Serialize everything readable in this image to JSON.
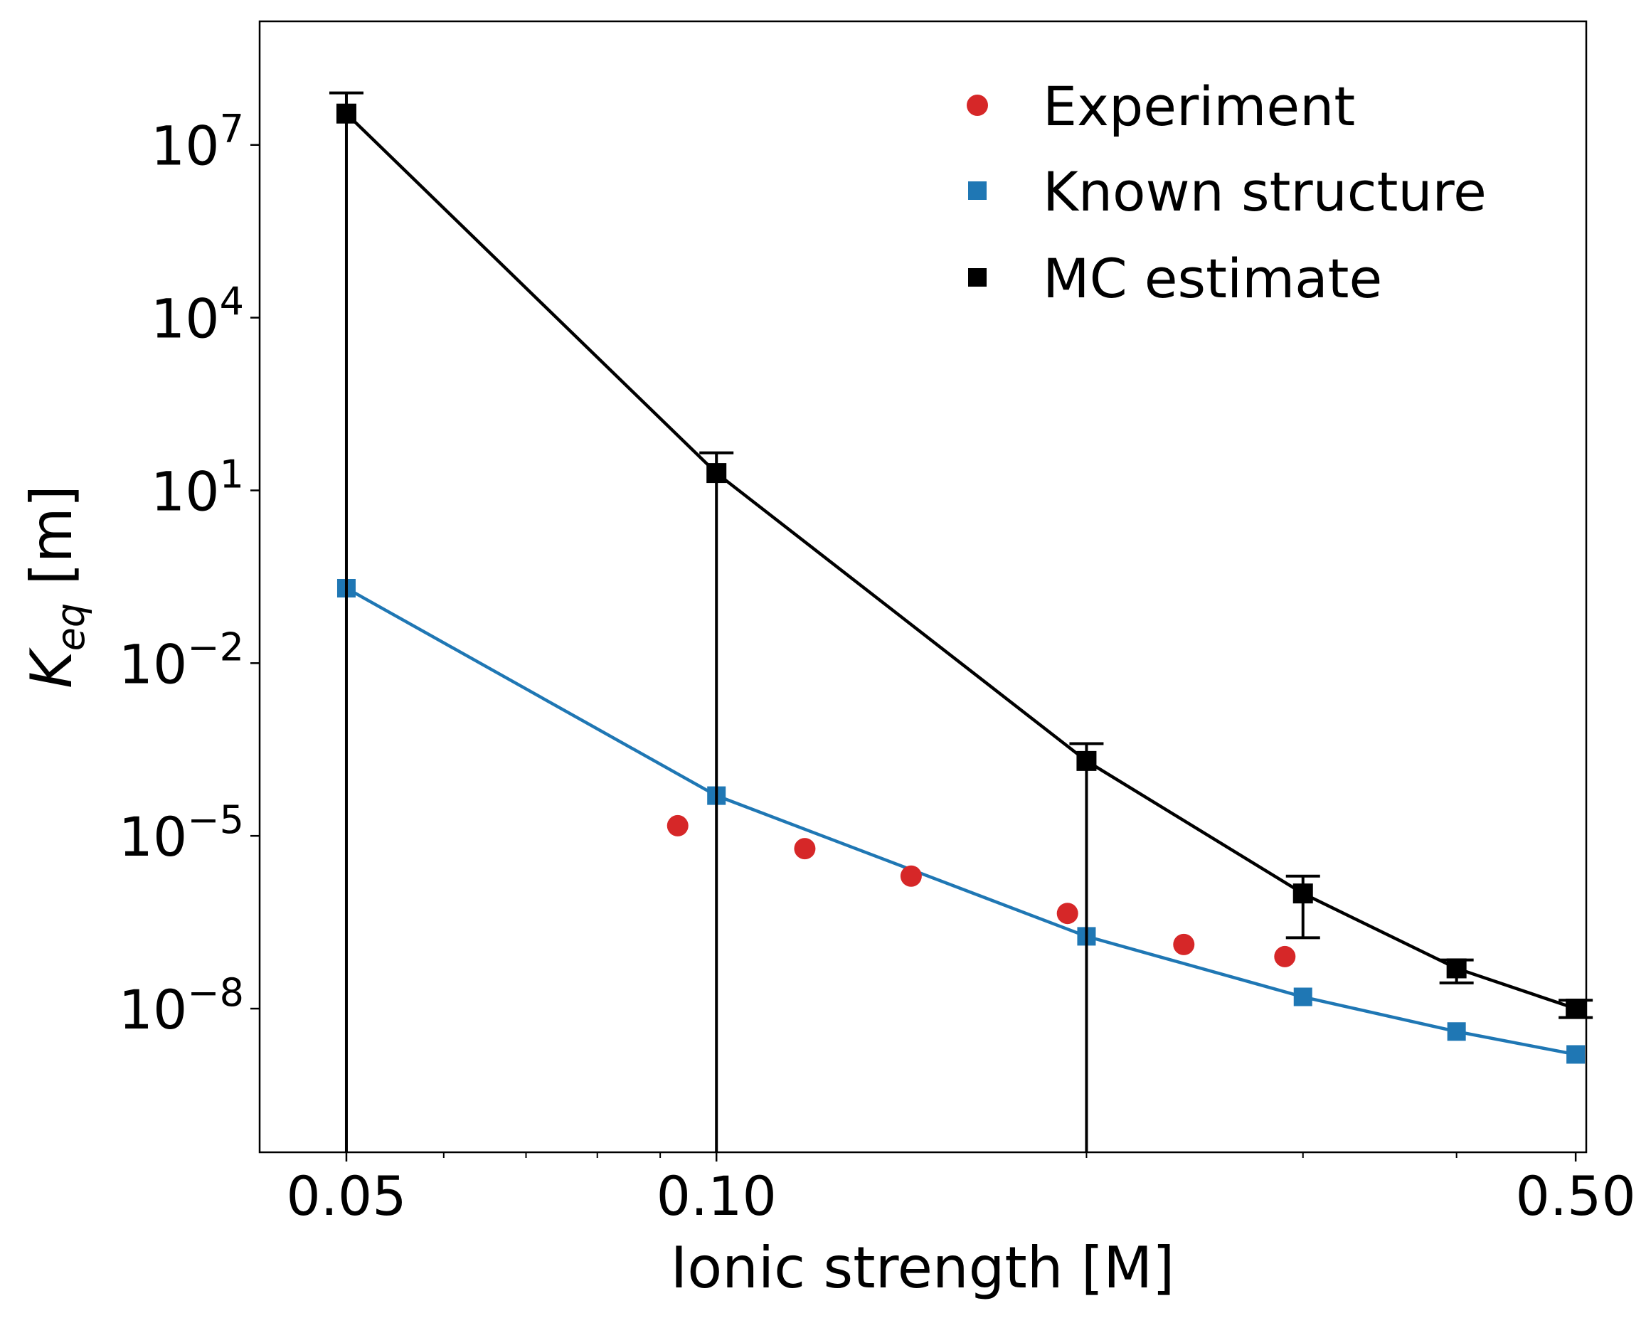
{
  "chart_data": {
    "type": "scatter",
    "xlabel": "Ionic strength [M]",
    "ylabel": {
      "symbol": "K",
      "subscript": "eq",
      "unit": " [m]"
    },
    "xscale": "log",
    "yscale": "log",
    "xlim": [
      0.0425,
      0.51
    ],
    "ylim": [
      3.2e-11,
      1400000000.0
    ],
    "xticks": [
      {
        "value": 0.05,
        "label": "0.05"
      },
      {
        "value": 0.1,
        "label": "0.10"
      },
      {
        "value": 0.5,
        "label": "0.50"
      }
    ],
    "xminor_ticks": [
      0.06,
      0.07,
      0.08,
      0.09,
      0.2,
      0.3,
      0.4
    ],
    "yticks": [
      {
        "value": 10000000.0,
        "base": "10",
        "exp": "7"
      },
      {
        "value": 10000.0,
        "base": "10",
        "exp": "4"
      },
      {
        "value": 10.0,
        "base": "10",
        "exp": "1"
      },
      {
        "value": 0.01,
        "base": "10",
        "exp": "−2"
      },
      {
        "value": 1e-05,
        "base": "10",
        "exp": "−5"
      },
      {
        "value": 1e-08,
        "base": "10",
        "exp": "−8"
      }
    ],
    "grid": false,
    "legend_position": "top-right",
    "series": [
      {
        "name": "Experiment",
        "marker": "circle",
        "line": false,
        "color": "#d62728",
        "x": [
          0.093,
          0.118,
          0.144,
          0.193,
          0.24,
          0.29
        ],
        "y": [
          1.5e-05,
          6e-06,
          2e-06,
          4.5e-07,
          1.3e-07,
          8e-08
        ]
      },
      {
        "name": "Known structure",
        "marker": "square",
        "line": true,
        "color": "#1f77b4",
        "x": [
          0.05,
          0.1,
          0.2,
          0.3,
          0.4,
          0.5
        ],
        "y": [
          0.2,
          5e-05,
          1.8e-07,
          1.6e-08,
          4e-09,
          1.6e-09
        ]
      },
      {
        "name": "MC estimate",
        "marker": "square",
        "line": true,
        "color": "#000000",
        "x": [
          0.05,
          0.1,
          0.2,
          0.3,
          0.4,
          0.5
        ],
        "y": [
          35000000.0,
          20.0,
          0.0002,
          1e-06,
          5e-08,
          1e-08
        ],
        "yerr_low": [
          3e-11,
          3e-11,
          3e-11,
          1.7e-07,
          2.8e-08,
          7e-09
        ],
        "yerr_high": [
          80000000.0,
          45.0,
          0.0004,
          2e-06,
          7e-08,
          1.4e-08
        ]
      }
    ]
  }
}
